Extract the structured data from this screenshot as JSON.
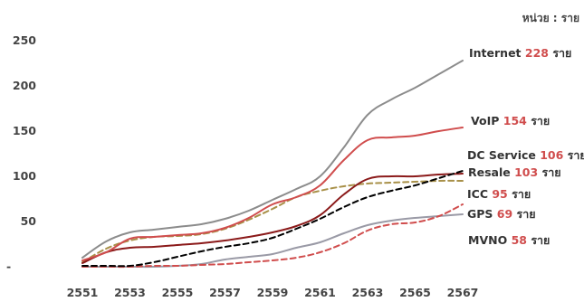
{
  "chart_data": {
    "type": "line",
    "unit_label": "หน่วย : ราย",
    "x": [
      "2551",
      "2552",
      "2553",
      "2554",
      "2555",
      "2556",
      "2557",
      "2558",
      "2559",
      "2560",
      "2561",
      "2562",
      "2563",
      "2564",
      "2565",
      "2566",
      "2567"
    ],
    "x_tick_labels": [
      "2551",
      "2553",
      "2555",
      "2557",
      "2559",
      "2561",
      "2563",
      "2565",
      "2567"
    ],
    "ylim": [
      0,
      250
    ],
    "y_ticks": [
      0,
      50,
      100,
      150,
      200,
      250
    ],
    "y_tick_labels": [
      "-",
      "50",
      "100",
      "150",
      "200",
      "250"
    ],
    "grid": false,
    "series": [
      {
        "name": "Internet",
        "count": "228",
        "suffix": "ราย",
        "color": "#8c8c8c",
        "dash": "solid",
        "values": [
          10,
          28,
          38,
          41,
          44,
          47,
          53,
          62,
          74,
          86,
          100,
          132,
          168,
          185,
          198,
          213,
          228
        ]
      },
      {
        "name": "VoIP",
        "count": "154",
        "suffix": "ราย",
        "color": "#d04d4d",
        "dash": "solid",
        "values": [
          7,
          16,
          31,
          33,
          35,
          37,
          43,
          54,
          69,
          77,
          90,
          118,
          140,
          143,
          145,
          150,
          154
        ]
      },
      {
        "name": "DC Service",
        "count": "106",
        "suffix": "ราย",
        "color": "#000000",
        "dash": "dashed",
        "values": [
          1,
          1,
          1,
          5,
          11,
          17,
          22,
          26,
          32,
          42,
          53,
          66,
          77,
          84,
          90,
          98,
          106
        ]
      },
      {
        "name": "Resale",
        "count": "103",
        "suffix": "ราย",
        "color": "#8b1a1a",
        "dash": "solid",
        "values": [
          4,
          16,
          21,
          22,
          24,
          26,
          29,
          33,
          38,
          45,
          57,
          80,
          97,
          100,
          100,
          102,
          103
        ]
      },
      {
        "name": "ICC",
        "count": "95",
        "suffix": "ราย",
        "color": "#a89048",
        "dash": "dashed",
        "values": [
          5,
          20,
          29,
          33,
          34,
          36,
          42,
          52,
          64,
          77,
          84,
          89,
          92,
          93,
          94,
          95,
          95
        ]
      },
      {
        "name": "GPS",
        "count": "69",
        "suffix": "ราย",
        "color": "#d04d4d",
        "dash": "dashed",
        "values": [
          0,
          0,
          0,
          1,
          1,
          2,
          3,
          5,
          7,
          10,
          16,
          26,
          40,
          47,
          49,
          56,
          69
        ]
      },
      {
        "name": "MVNO",
        "count": "58",
        "suffix": "ราย",
        "color": "#9a9aa6",
        "dash": "solid",
        "values": [
          0,
          0,
          0,
          0,
          1,
          3,
          8,
          11,
          14,
          21,
          27,
          37,
          46,
          51,
          54,
          56,
          58
        ]
      }
    ]
  }
}
